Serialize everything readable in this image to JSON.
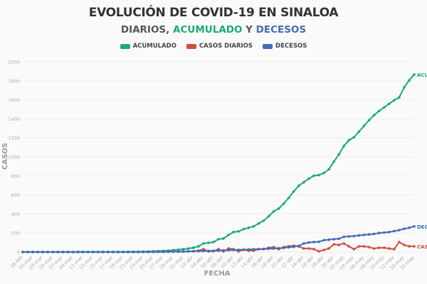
{
  "title": "EVOLUCIÓN DE COVID-19 EN SINALOA",
  "subtitle": {
    "part1": "DIARIOS,",
    "part2": "ACUMULADO",
    "part3": "Y",
    "part4": "DECESOS"
  },
  "colors": {
    "acumulado": "#1aa97a",
    "casos_diarios": "#d0503e",
    "decesos": "#3e6db5"
  },
  "chart_data": {
    "type": "line",
    "xlabel": "FECHA",
    "ylabel": "CASOS",
    "ylim": [
      0,
      2000
    ],
    "yticks": [
      0,
      200,
      400,
      600,
      800,
      1000,
      1200,
      1400,
      1600,
      1800,
      2000
    ],
    "grid": true,
    "legend": "top",
    "x": [
      "28-feb",
      "29-feb",
      "01-mar",
      "02-mar",
      "03-mar",
      "04-mar",
      "05-mar",
      "06-mar",
      "07-mar",
      "08-mar",
      "09-mar",
      "10-mar",
      "11-mar",
      "12-mar",
      "13-mar",
      "14-mar",
      "15-mar",
      "16-mar",
      "17-mar",
      "18-mar",
      "19-mar",
      "20-mar",
      "21-mar",
      "22-mar",
      "23-mar",
      "24-mar",
      "25-mar",
      "26-mar",
      "27-mar",
      "28-mar",
      "29-mar",
      "30-mar",
      "31-mar",
      "01-abr",
      "02-abr",
      "03-abr",
      "04-abr",
      "05-abr",
      "06-abr",
      "07-abr",
      "08-abr",
      "09-abr",
      "10-abr",
      "11-abr",
      "12-abr",
      "13-abr",
      "14-abr",
      "15-abr",
      "16-abr",
      "17-abr",
      "18-abr",
      "19-abr",
      "20-abr",
      "21-abr",
      "22-abr",
      "23-abr",
      "24-abr",
      "25-abr",
      "26-abr",
      "27-abr",
      "28-abr",
      "29-abr",
      "30-abr",
      "01-may",
      "02-may",
      "03-may",
      "04-may",
      "05-may",
      "06-may",
      "07-may",
      "08-may",
      "09-may",
      "10-may",
      "11-may",
      "12-may",
      "13-may",
      "14-may",
      "15-may",
      "16-may"
    ],
    "series": [
      {
        "name": "ACUMULADO",
        "color": "#1aa97a",
        "values": [
          1,
          1,
          1,
          1,
          1,
          1,
          1,
          1,
          1,
          1,
          1,
          2,
          2,
          2,
          2,
          2,
          2,
          2,
          2,
          2,
          2,
          3,
          3,
          4,
          5,
          6,
          8,
          10,
          12,
          15,
          20,
          25,
          30,
          37,
          45,
          60,
          90,
          97,
          105,
          135,
          142,
          180,
          210,
          217,
          240,
          255,
          270,
          300,
          330,
          375,
          427,
          457,
          509,
          570,
          637,
          697,
          734,
          771,
          802,
          809,
          831,
          869,
          951,
          1026,
          1116,
          1176,
          1206,
          1266,
          1326,
          1386,
          1438,
          1483,
          1520,
          1558,
          1595,
          1625,
          1730,
          1805,
          1865
        ]
      },
      {
        "name": "CASOS DIARIOS",
        "color": "#d0503e",
        "values": [
          1,
          0,
          0,
          0,
          0,
          0,
          0,
          0,
          0,
          0,
          0,
          1,
          0,
          0,
          0,
          0,
          0,
          0,
          0,
          0,
          0,
          1,
          0,
          1,
          1,
          1,
          2,
          2,
          2,
          3,
          5,
          5,
          5,
          7,
          8,
          15,
          30,
          7,
          8,
          30,
          7,
          38,
          30,
          7,
          23,
          15,
          15,
          30,
          30,
          45,
          52,
          30,
          52,
          61,
          67,
          60,
          37,
          37,
          31,
          7,
          22,
          38,
          82,
          75,
          90,
          60,
          30,
          60,
          60,
          52,
          37,
          45,
          45,
          37,
          30,
          105,
          75,
          60,
          60
        ]
      },
      {
        "name": "DECESOS",
        "color": "#3e6db5",
        "values": [
          0,
          0,
          0,
          0,
          0,
          0,
          0,
          0,
          0,
          0,
          0,
          0,
          0,
          0,
          0,
          0,
          0,
          0,
          0,
          0,
          0,
          0,
          0,
          0,
          1,
          1,
          2,
          2,
          3,
          3,
          4,
          5,
          6,
          7,
          8,
          9,
          10,
          12,
          13,
          15,
          17,
          19,
          21,
          23,
          25,
          27,
          29,
          31,
          33,
          35,
          37,
          40,
          45,
          50,
          55,
          65,
          90,
          100,
          105,
          108,
          125,
          130,
          135,
          140,
          160,
          165,
          168,
          175,
          180,
          185,
          190,
          200,
          205,
          210,
          220,
          230,
          245,
          255,
          270
        ]
      }
    ]
  }
}
